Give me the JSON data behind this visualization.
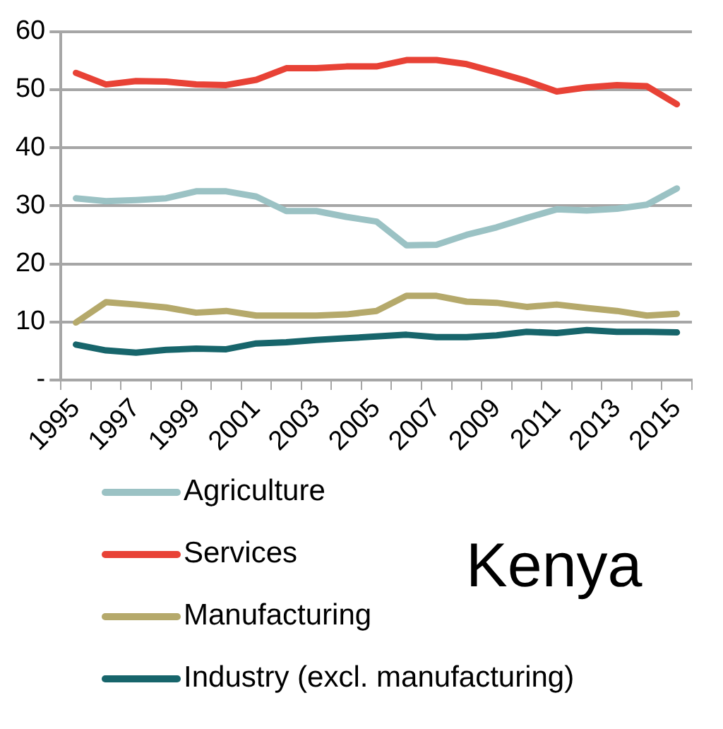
{
  "chart_data": {
    "type": "line",
    "title": "Kenya",
    "categories": [
      "1995",
      null,
      "1997",
      null,
      "1999",
      null,
      "2001",
      null,
      "2003",
      null,
      "2005",
      null,
      "2007",
      null,
      "2009",
      null,
      "2011",
      null,
      "2013",
      null,
      "2015"
    ],
    "series": [
      {
        "name": "Agriculture",
        "color": "#9bc2c4",
        "values": [
          31.3,
          30.8,
          31.0,
          31.3,
          32.5,
          32.5,
          31.6,
          29.1,
          29.1,
          28.1,
          27.3,
          23.2,
          23.3,
          25.0,
          26.3,
          27.9,
          29.4,
          29.2,
          29.5,
          30.2,
          33.0
        ]
      },
      {
        "name": "Services",
        "color": "#e84236",
        "values": [
          52.9,
          50.9,
          51.5,
          51.4,
          50.9,
          50.8,
          51.7,
          53.7,
          53.7,
          54.0,
          54.0,
          55.1,
          55.1,
          54.4,
          53.0,
          51.5,
          49.7,
          50.4,
          50.8,
          50.6,
          47.5
        ]
      },
      {
        "name": "Manufacturing",
        "color": "#b5a96b",
        "values": [
          9.9,
          13.4,
          13.0,
          12.5,
          11.6,
          11.9,
          11.1,
          11.1,
          11.1,
          11.3,
          11.9,
          14.5,
          14.5,
          13.5,
          13.3,
          12.6,
          13.0,
          12.4,
          11.9,
          11.1,
          11.4
        ]
      },
      {
        "name": "Industry (excl. manufacturing)",
        "color": "#17656b",
        "values": [
          6.1,
          5.1,
          4.7,
          5.2,
          5.4,
          5.3,
          6.3,
          6.5,
          6.9,
          7.2,
          7.5,
          7.8,
          7.4,
          7.4,
          7.7,
          8.3,
          8.1,
          8.6,
          8.3,
          8.3,
          8.2
        ]
      }
    ],
    "ylim": [
      0,
      60
    ],
    "yticks": [
      {
        "value": 0,
        "label": "-"
      },
      10,
      20,
      30,
      40,
      50,
      60
    ],
    "grid": "y",
    "legend": "bottom",
    "marker": "none",
    "line_style": "solid"
  }
}
